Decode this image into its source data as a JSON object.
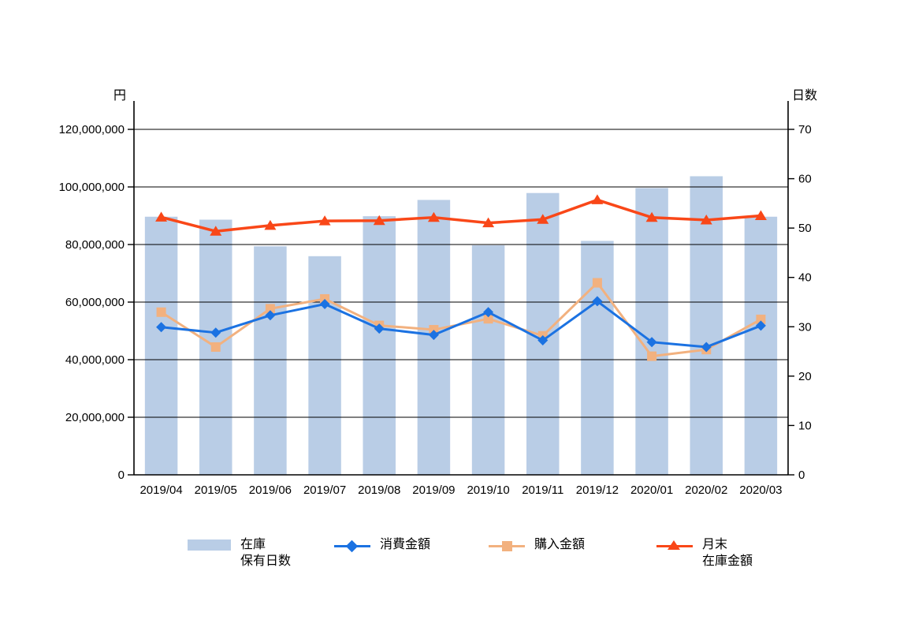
{
  "chart_data": {
    "type": "combo-bar-line",
    "categories": [
      "2019/04",
      "2019/05",
      "2019/06",
      "2019/07",
      "2019/08",
      "2019/09",
      "2019/10",
      "2019/11",
      "2019/12",
      "2020/01",
      "2020/02",
      "2020/03"
    ],
    "series": [
      {
        "name": "在庫保有日数",
        "legend_lines": [
          "在庫",
          "保有日数"
        ],
        "type": "bar",
        "axis": "right",
        "unit": "日",
        "color": "#B9CDE6",
        "values": [
          52.3,
          51.7,
          46.3,
          44.3,
          52.4,
          55.7,
          46.5,
          57.1,
          47.4,
          58.1,
          60.5,
          52.3
        ]
      },
      {
        "name": "消費金額",
        "legend_lines": [
          "消費金額"
        ],
        "type": "line",
        "marker": "diamond",
        "axis": "left",
        "unit": "円",
        "color": "#1B72E2",
        "values": [
          51300000,
          49400000,
          55400000,
          59300000,
          50800000,
          48600000,
          56500000,
          46700000,
          60300000,
          46100000,
          44400000,
          51800000
        ]
      },
      {
        "name": "購入金額",
        "legend_lines": [
          "購入金額"
        ],
        "type": "line",
        "marker": "square",
        "axis": "left",
        "unit": "円",
        "color": "#F2B17F",
        "values": [
          56500000,
          44400000,
          57700000,
          61100000,
          51900000,
          50400000,
          54200000,
          48300000,
          66700000,
          41200000,
          43500000,
          54000000
        ]
      },
      {
        "name": "月末在庫金額",
        "legend_lines": [
          "月末",
          "在庫金額"
        ],
        "type": "line",
        "marker": "triangle",
        "axis": "left",
        "unit": "円",
        "color": "#F94718",
        "values": [
          89500000,
          84600000,
          86600000,
          88200000,
          88300000,
          89400000,
          87500000,
          88700000,
          95500000,
          89400000,
          88500000,
          90000000
        ]
      }
    ],
    "left_axis": {
      "title": "円",
      "min": 0,
      "max": 120000000,
      "step": 20000000,
      "tick_labels": [
        "0",
        "20,000,000",
        "40,000,000",
        "60,000,000",
        "80,000,000",
        "100,000,000",
        "120,000,000"
      ]
    },
    "right_axis": {
      "title": "日数",
      "min": 0,
      "max": 70,
      "step": 10,
      "tick_labels": [
        "0",
        "10",
        "20",
        "30",
        "40",
        "50",
        "60",
        "70"
      ]
    },
    "grid": true,
    "legend_position": "bottom",
    "colors": {
      "bar": "#B9CDE6",
      "consumption": "#1B72E2",
      "purchase": "#F2B17F",
      "month_end": "#F94718",
      "axis": "#000000",
      "text": "#000000"
    }
  }
}
